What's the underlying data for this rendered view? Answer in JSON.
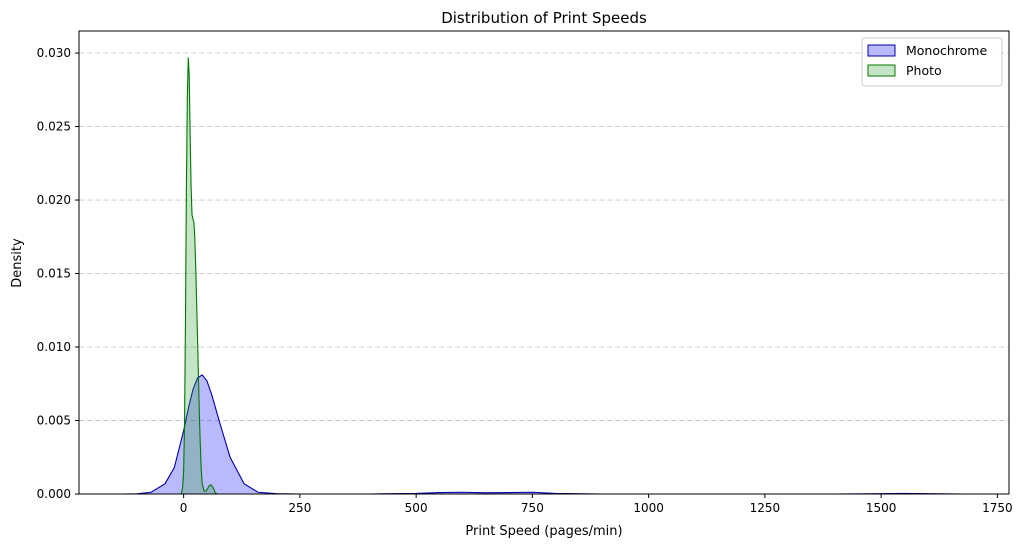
{
  "chart_data": {
    "type": "area",
    "title": "Distribution of Print Speeds",
    "xlabel": "Print Speed (pages/min)",
    "ylabel": "Density",
    "xlim": [
      -225,
      1775
    ],
    "ylim": [
      0,
      0.0315
    ],
    "xticks": [
      0,
      250,
      500,
      750,
      1000,
      1250,
      1500,
      1750
    ],
    "xtick_labels": [
      "0",
      "250",
      "500",
      "750",
      "1000",
      "1250",
      "1500",
      "1750"
    ],
    "yticks": [
      0.0,
      0.005,
      0.01,
      0.015,
      0.02,
      0.025,
      0.03
    ],
    "ytick_labels": [
      "0.000",
      "0.005",
      "0.010",
      "0.015",
      "0.020",
      "0.025",
      "0.030"
    ],
    "grid": "y-dashed",
    "legend_position": "top-right",
    "series": [
      {
        "name": "Monochrome",
        "color": "#0000aa",
        "fill": "#0000ff",
        "x": [
          -130,
          -100,
          -70,
          -40,
          -20,
          0,
          10,
          20,
          30,
          40,
          50,
          60,
          80,
          100,
          130,
          160,
          200,
          250,
          300,
          400,
          500,
          550,
          600,
          650,
          700,
          750,
          800,
          900,
          1000,
          1200,
          1400,
          1500,
          1550,
          1600,
          1680
        ],
        "values": [
          0.0,
          1e-05,
          0.00012,
          0.0007,
          0.0018,
          0.0043,
          0.0058,
          0.0071,
          0.0079,
          0.0081,
          0.0077,
          0.0068,
          0.0046,
          0.0025,
          0.0007,
          0.00012,
          2e-05,
          0.0,
          0.0,
          0.0,
          4e-05,
          0.0001,
          0.00012,
          8e-05,
          0.0001,
          0.00012,
          4e-05,
          0.0,
          0.0,
          0.0,
          0.0,
          2e-05,
          4e-05,
          2e-05,
          0.0
        ]
      },
      {
        "name": "Photo",
        "color": "#007700",
        "fill": "#2ca02c",
        "x": [
          -5,
          -2,
          0,
          2,
          4,
          6,
          8,
          10,
          12,
          14,
          16,
          18,
          20,
          22,
          24,
          26,
          28,
          30,
          32,
          34,
          36,
          38,
          40,
          44,
          48,
          52,
          56,
          60,
          64,
          68,
          72
        ],
        "values": [
          0.0,
          0.0005,
          0.0015,
          0.005,
          0.012,
          0.021,
          0.027,
          0.0297,
          0.0285,
          0.0245,
          0.021,
          0.019,
          0.0187,
          0.0185,
          0.0175,
          0.0155,
          0.013,
          0.0105,
          0.0078,
          0.0052,
          0.0032,
          0.0016,
          0.0007,
          0.0002,
          0.0002,
          0.0004,
          0.0006,
          0.0006,
          0.0004,
          0.0001,
          0.0
        ]
      }
    ]
  }
}
